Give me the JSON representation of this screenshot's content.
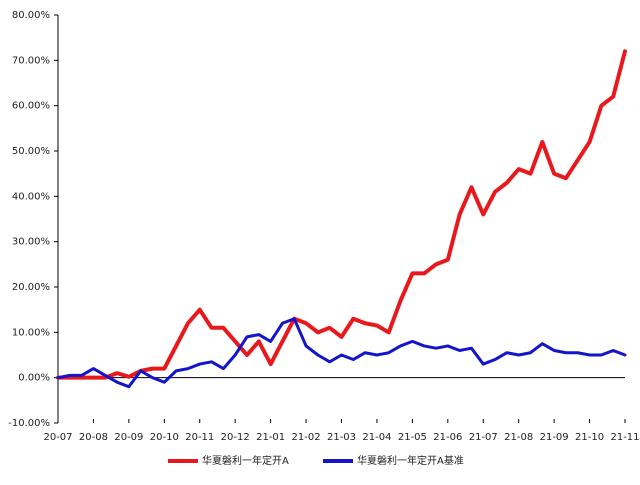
{
  "chart_data": {
    "type": "line",
    "categories": [
      "20-07",
      null,
      null,
      "20-08",
      null,
      null,
      "20-09",
      null,
      null,
      "20-10",
      null,
      null,
      "20-11",
      null,
      null,
      "20-12",
      null,
      null,
      "21-01",
      null,
      null,
      "21-02",
      null,
      null,
      "21-03",
      null,
      null,
      "21-04",
      null,
      null,
      "21-05",
      null,
      null,
      "21-06",
      null,
      null,
      "21-07",
      null,
      null,
      "21-08",
      null,
      null,
      "21-09",
      null,
      null,
      "21-10",
      null,
      null,
      "21-11"
    ],
    "series": [
      {
        "name": "华夏磐利一年定开A",
        "color": "#e8191c",
        "values": [
          0,
          0,
          0,
          0,
          0,
          1,
          0.2,
          1.5,
          2,
          2,
          7,
          12,
          15,
          11,
          11,
          8,
          5,
          8,
          3,
          8,
          13,
          12,
          10,
          11,
          9,
          13,
          12,
          11.5,
          10,
          17,
          23,
          23,
          25,
          26,
          36,
          42,
          36,
          41,
          43,
          46,
          45,
          52,
          45,
          44,
          48,
          52,
          60,
          62,
          72
        ]
      },
      {
        "name": "华夏磐利一年定开A基准",
        "color": "#1414c8",
        "values": [
          0,
          0.5,
          0.5,
          2,
          0.5,
          -1,
          -2,
          1.5,
          0,
          -1,
          1.5,
          2,
          3,
          3.5,
          2,
          5,
          9,
          9.5,
          8,
          12,
          13,
          7,
          5,
          3.5,
          5,
          4,
          5.5,
          5,
          5.5,
          7,
          8,
          7,
          6.5,
          7,
          6,
          6.5,
          3,
          4,
          5.5,
          5,
          5.5,
          7.5,
          6,
          5.5,
          5.5,
          5,
          5,
          6,
          5
        ]
      }
    ],
    "ylim": [
      -10,
      80
    ],
    "yticks": [
      {
        "value": -10,
        "label": "-10.00%"
      },
      {
        "value": 0,
        "label": "0.00%"
      },
      {
        "value": 10,
        "label": "10.00%"
      },
      {
        "value": 20,
        "label": "20.00%"
      },
      {
        "value": 30,
        "label": "30.00%"
      },
      {
        "value": 40,
        "label": "40.00%"
      },
      {
        "value": 50,
        "label": "50.00%"
      },
      {
        "value": 60,
        "label": "60.00%"
      },
      {
        "value": 70,
        "label": "70.00%"
      },
      {
        "value": 80,
        "label": "80.00%"
      }
    ],
    "legend": "bottom"
  }
}
